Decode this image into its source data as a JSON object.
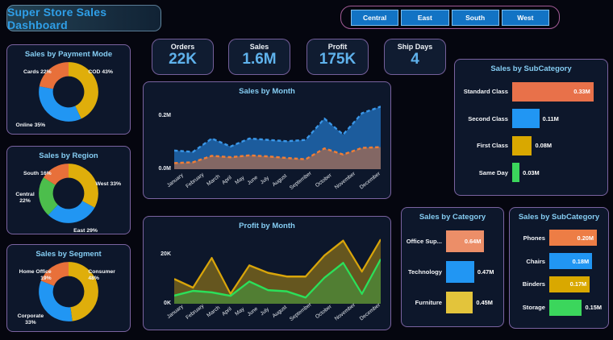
{
  "title": "Super Store Sales Dashboard",
  "slicer": {
    "buttons": [
      "Central",
      "East",
      "South",
      "West"
    ]
  },
  "kpis": [
    {
      "label": "Orders",
      "value": "22K"
    },
    {
      "label": "Sales",
      "value": "1.6M"
    },
    {
      "label": "Profit",
      "value": "175K"
    },
    {
      "label": "Ship Days",
      "value": "4"
    }
  ],
  "palette": {
    "accent_text": "#5fb2ec",
    "title_text": "#2f9fe8",
    "panel_title_text": "#85cdf3",
    "button_blue": "#1273c4",
    "orange": "#e8703a",
    "gold": "#dfae0b",
    "blue": "#2196f3",
    "green": "#3bd65c"
  },
  "chart_data": [
    {
      "id": "payment",
      "type": "pie",
      "title": "Sales by Payment Mode",
      "legend_position": "callouts",
      "slices": [
        {
          "label": "COD",
          "pct": 43,
          "color": "#dfae0b",
          "callout": "COD 43%",
          "pos": "tr"
        },
        {
          "label": "Online",
          "pct": 35,
          "color": "#2196f3",
          "callout": "Online 35%",
          "pos": "bl"
        },
        {
          "label": "Cards",
          "pct": 22,
          "color": "#e8703a",
          "callout": "Cards 22%",
          "pos": "tl"
        }
      ]
    },
    {
      "id": "region",
      "type": "pie",
      "title": "Sales by Region",
      "legend_position": "callouts",
      "slices": [
        {
          "label": "West",
          "pct": 33,
          "color": "#dfae0b",
          "callout": "West 33%",
          "pos": "r"
        },
        {
          "label": "East",
          "pct": 29,
          "color": "#2196f3",
          "callout": "East 29%",
          "pos": "b"
        },
        {
          "label": "Central",
          "pct": 22,
          "color": "#4cbe4c",
          "callout": "Central 22%",
          "pos": "l"
        },
        {
          "label": "South",
          "pct": 16,
          "color": "#e8703a",
          "callout": "South 16%",
          "pos": "tl"
        }
      ]
    },
    {
      "id": "segment",
      "type": "pie",
      "title": "Sales by Segment",
      "legend_position": "callouts",
      "slices": [
        {
          "label": "Consumer",
          "pct": 48,
          "color": "#dfae0b",
          "callout": "Consumer 48%",
          "pos": "tr"
        },
        {
          "label": "Corporate",
          "pct": 33,
          "color": "#2196f3",
          "callout": "Corporate 33%",
          "pos": "bl"
        },
        {
          "label": "Home Office",
          "pct": 19,
          "color": "#e8703a",
          "callout": "Home Office 19%",
          "pos": "tl"
        }
      ]
    },
    {
      "id": "sales-month",
      "type": "area",
      "title": "Sales by Month",
      "xlabel": "",
      "ylabel": "Sales",
      "ylim": [
        0,
        0.26
      ],
      "grid": false,
      "yticks": [
        {
          "v": 0.2,
          "label": "0.2M"
        },
        {
          "v": 0,
          "label": "0.0M"
        }
      ],
      "categories": [
        "January",
        "February",
        "March",
        "April",
        "May",
        "June",
        "July",
        "August",
        "September",
        "October",
        "November",
        "December"
      ],
      "series": [
        {
          "name": "series-blue",
          "color": "#3a97e8",
          "fill": "rgba(32,104,178,0.85)",
          "dash": true,
          "values": [
            0.07,
            0.065,
            0.115,
            0.085,
            0.115,
            0.11,
            0.105,
            0.11,
            0.19,
            0.13,
            0.21,
            0.235
          ]
        },
        {
          "name": "series-orange",
          "color": "#f07e36",
          "fill": "rgba(200,110,62,0.60)",
          "dash": true,
          "values": [
            0.023,
            0.026,
            0.05,
            0.045,
            0.052,
            0.048,
            0.042,
            0.037,
            0.078,
            0.055,
            0.08,
            0.083
          ]
        }
      ]
    },
    {
      "id": "profit-month",
      "type": "area",
      "title": "Profit by Month",
      "xlabel": "",
      "ylabel": "Profit",
      "ylim": [
        0,
        28
      ],
      "grid": false,
      "yticks": [
        {
          "v": 20,
          "label": "20K"
        },
        {
          "v": 0,
          "label": "0K"
        }
      ],
      "categories": [
        "January",
        "February",
        "March",
        "April",
        "May",
        "June",
        "July",
        "August",
        "September",
        "October",
        "November",
        "December"
      ],
      "series": [
        {
          "name": "series-gold",
          "color": "#d9a50a",
          "fill": "rgba(190,150,20,0.50)",
          "dash": false,
          "values": [
            10,
            6.5,
            18.5,
            4,
            15.5,
            12.5,
            11,
            11,
            19.5,
            25.5,
            13,
            26
          ]
        },
        {
          "name": "series-green",
          "color": "#2be05a",
          "fill": "rgba(46,200,88,0.35)",
          "dash": false,
          "values": [
            3.3,
            5.2,
            4.6,
            3.2,
            9,
            5.5,
            5,
            2.5,
            10.5,
            16.5,
            4,
            18
          ]
        }
      ]
    },
    {
      "id": "shipmode",
      "type": "bar",
      "title": "Sales by SubCategory",
      "xmax": 0.36,
      "items": [
        {
          "label": "Standard Class",
          "value": 0.33,
          "value_label": "0.33M",
          "color": "#e8714a",
          "inside": true
        },
        {
          "label": "Second Class",
          "value": 0.11,
          "value_label": "0.11M",
          "color": "#2196f3",
          "inside": false
        },
        {
          "label": "First Class",
          "value": 0.08,
          "value_label": "0.08M",
          "color": "#d9a800",
          "inside": false
        },
        {
          "label": "Same Day",
          "value": 0.03,
          "value_label": "0.03M",
          "color": "#3bd65c",
          "inside": false
        }
      ]
    },
    {
      "id": "category",
      "type": "bar",
      "title": "Sales by Category",
      "xmax": 0.85,
      "items": [
        {
          "label": "Office Sup...",
          "value": 0.64,
          "value_label": "0.64M",
          "color": "#ec8e68",
          "inside": true
        },
        {
          "label": "Technology",
          "value": 0.47,
          "value_label": "0.47M",
          "color": "#2196f3",
          "inside": false
        },
        {
          "label": "Furniture",
          "value": 0.45,
          "value_label": "0.45M",
          "color": "#e3c43b",
          "inside": false
        }
      ]
    },
    {
      "id": "subcategory",
      "type": "bar",
      "title": "Sales by SubCategory",
      "xmax": 0.22,
      "items": [
        {
          "label": "Phones",
          "value": 0.2,
          "value_label": "0.20M",
          "color": "#ed7d45",
          "inside": true
        },
        {
          "label": "Chairs",
          "value": 0.18,
          "value_label": "0.18M",
          "color": "#2196f3",
          "inside": true
        },
        {
          "label": "Binders",
          "value": 0.17,
          "value_label": "0.17M",
          "color": "#d9a800",
          "inside": true
        },
        {
          "label": "Storage",
          "value": 0.15,
          "value_label": "0.15M",
          "color": "#3bd65c",
          "inside": false
        }
      ]
    }
  ]
}
